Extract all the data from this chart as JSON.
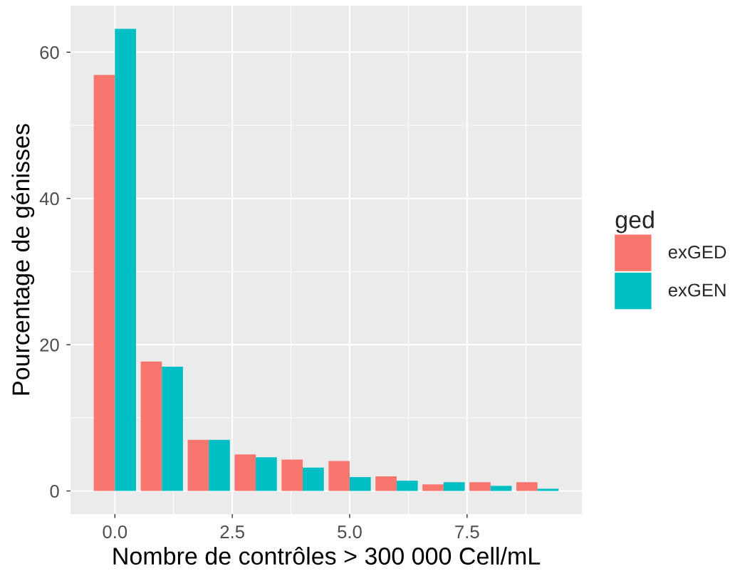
{
  "chart_data": {
    "type": "bar",
    "xlabel": "Nombre de contrôles > 300 000 Cell/mL",
    "ylabel": "Pourcentage de génisses",
    "legend_title": "ged",
    "x": [
      0,
      1,
      2,
      3,
      4,
      5,
      6,
      7,
      8,
      9
    ],
    "series": [
      {
        "name": "exGED",
        "color": "#f8766d",
        "values": [
          56.9,
          17.7,
          7.0,
          5.0,
          4.3,
          4.1,
          2.0,
          0.9,
          1.2,
          1.2
        ]
      },
      {
        "name": "exGEN",
        "color": "#00bfc4",
        "values": [
          63.2,
          17.0,
          7.0,
          4.6,
          3.2,
          1.9,
          1.4,
          1.2,
          0.7,
          0.3
        ]
      }
    ],
    "xlim": [
      -0.945,
      9.945
    ],
    "xticks": [
      {
        "value": 0,
        "label": "0.0"
      },
      2.5,
      {
        "value": 5,
        "label": "5.0"
      },
      7.5
    ],
    "ylim": [
      -3.16,
      66.36
    ],
    "yticks": [
      0,
      20,
      40,
      60
    ],
    "grid": true,
    "legend": "right"
  }
}
